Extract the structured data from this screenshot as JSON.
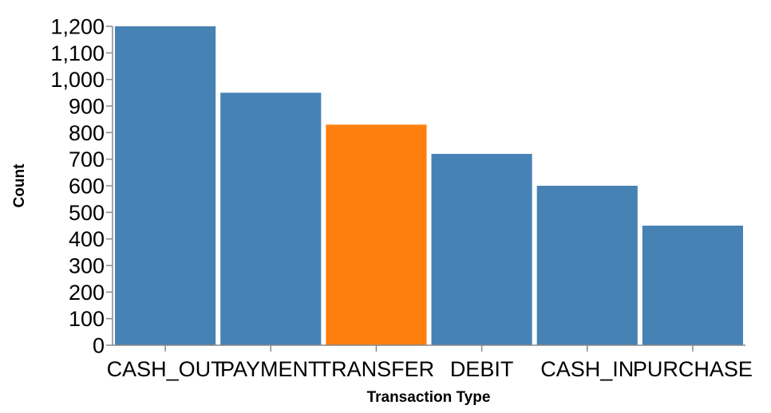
{
  "chart_data": {
    "type": "bar",
    "categories": [
      "CASH_OUT",
      "PAYMENT",
      "TRANSFER",
      "DEBIT",
      "CASH_IN",
      "PURCHASE"
    ],
    "values": [
      1200,
      950,
      830,
      720,
      600,
      450
    ],
    "highlight_index": 2,
    "colors": {
      "bar": "#4682b4",
      "highlight": "#ff7f0e"
    },
    "xlabel": "Transaction Type",
    "ylabel": "Count",
    "ylim": [
      0,
      1200
    ],
    "yticks": [
      0,
      100,
      200,
      300,
      400,
      500,
      600,
      700,
      800,
      900,
      1000,
      1100,
      1200
    ],
    "ytick_labels": [
      "0",
      "100",
      "200",
      "300",
      "400",
      "500",
      "600",
      "700",
      "800",
      "900",
      "1,000",
      "1,100",
      "1,200"
    ],
    "grid": false,
    "legend": "none"
  }
}
